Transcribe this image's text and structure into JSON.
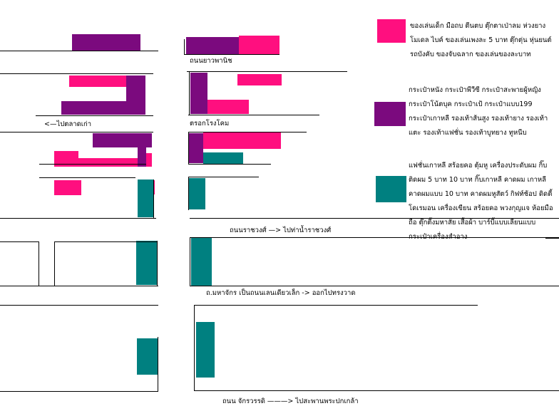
{
  "colors": {
    "pink": "#ff0f7f",
    "purple": "#7b0a7e",
    "teal": "#008080",
    "line": "#000000"
  },
  "legend": {
    "toys": {
      "color_key": "pink",
      "text": "ของเล่นเด็ก มือถบ ตีนตบ ตุ๊กตาเป่าลม ห่วงยาง โมเดล ไบค์ ของเล่นเพงละ 5 บาท ตุ๊กตุ่น หุ่นยนต์ รถบังคับ ของจับฉลาก ของเล่นของละบาท"
    },
    "bags": {
      "color_key": "purple",
      "text": "กระเป๋าหนัง กระเป๋าพีวีซี กระเป๋าสะพายผู้หญิง กระเป๋าโน้ตบุค กระเป๋าเป้ กระเป๋าแบบ199 กระเป๋าเกาหลี รองเท้าส้นสูง รองเท้ายาง รองเท้าแตะ รองเท้าแฟชั่น รองเท้าบูทยาง ทูหนีบ"
    },
    "fashion": {
      "color_key": "teal",
      "text": "แฟชั่นเกาหลี สร้อยคอ ตุ้มหู เครื่องประดับผม กิ๊บติดผม 5 บาท 10 บาท กิ๊บเกาหลี คาดผม เกาหลี คาดผมแบบ 10 บาท คาดผมหูสัตว์ กิฟท์ช้อป ดิดตี้โดเรมอน เครื่องเขียน สร้อยคอ พวงกุญแจ ห้อยมือถือ ตุ๊กตี้งมหาสัย เสื้อผ้า บาร์บี้แบบเลียนแบบ กระเป๋าเครื่องสำอาง"
    }
  },
  "labels": {
    "yaowaphanit": "ถนนยาวพานิช",
    "to_old_market": "<—ไปตลาดเก่า",
    "rongkhom": "ตรอกโรงโคม",
    "ratchawong": "ถนนราชวงศ์  —> ไปท่าน้ำราชวงศ์",
    "mahachak": "ถ.มหาจักร เป็นถนนเลนเดียวเล็ก -> ออกไปทรงวาด",
    "chakkrawat": "ถนน จักรวรรดิ  ———> ไปสะพานพระปกเกล้า"
  }
}
